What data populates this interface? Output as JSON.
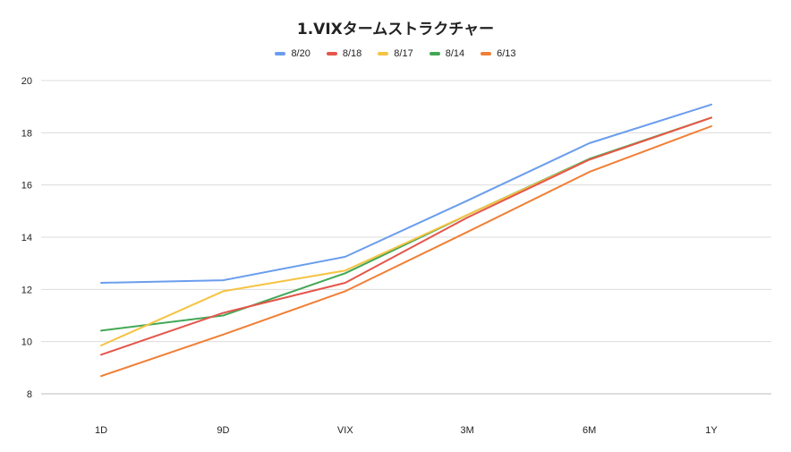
{
  "chart_data": {
    "type": "line",
    "title": "1.VIXタームストラクチャー",
    "categories": [
      "1D",
      "9D",
      "VIX",
      "3M",
      "6M",
      "1Y"
    ],
    "ylim": [
      8,
      20
    ],
    "yticks": [
      8,
      10,
      12,
      14,
      16,
      18,
      20
    ],
    "grid": true,
    "legend_position": "top",
    "series": [
      {
        "name": "8/20",
        "color": "#6a9ded",
        "values": [
          12.25,
          12.35,
          13.25,
          15.4,
          17.6,
          19.08
        ]
      },
      {
        "name": "8/18",
        "color": "#e4564b",
        "values": [
          9.5,
          11.1,
          12.25,
          14.75,
          16.97,
          18.58
        ]
      },
      {
        "name": "8/17",
        "color": "#f6c343",
        "values": [
          9.85,
          11.93,
          12.72,
          14.85,
          16.97,
          18.58
        ]
      },
      {
        "name": "8/14",
        "color": "#43a856",
        "values": [
          10.42,
          11.0,
          12.62,
          14.85,
          17.0,
          18.58
        ]
      },
      {
        "name": "6/13",
        "color": "#f07f35",
        "values": [
          8.68,
          10.27,
          11.93,
          14.2,
          16.5,
          18.25
        ]
      }
    ]
  }
}
